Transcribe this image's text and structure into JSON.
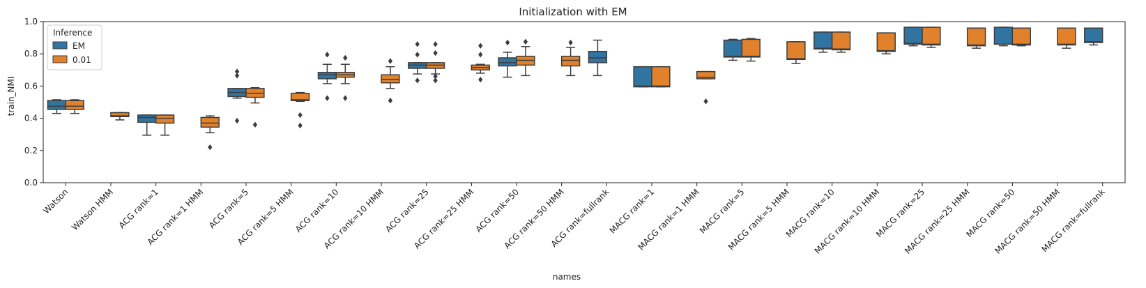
{
  "chart_data": {
    "type": "box",
    "title": "Initialization with EM",
    "xlabel": "names",
    "ylabel": "train_NMI",
    "ylim": [
      0,
      1
    ],
    "yticks": [
      "0.0",
      "0.2",
      "0.4",
      "0.6",
      "0.8",
      "1.0"
    ],
    "legend": {
      "title": "Inference",
      "placement": "top-left"
    },
    "categories": [
      "Watson",
      "Watson HMM",
      "ACG rank=1",
      "ACG rank=1 HMM",
      "ACG rank=5",
      "ACG rank=5 HMM",
      "ACG rank=10",
      "ACG rank=10 HMM",
      "ACG rank=25",
      "ACG rank=25 HMM",
      "ACG rank=50",
      "ACG rank=50 HMM",
      "ACG rank=fullrank",
      "MACG rank=1",
      "MACG rank=1 HMM",
      "MACG rank=5",
      "MACG rank=5 HMM",
      "MACG rank=10",
      "MACG rank=10 HMM",
      "MACG rank=25",
      "MACG rank=25 HMM",
      "MACG rank=50",
      "MACG rank=50 HMM",
      "MACG rank=fullrank"
    ],
    "series": [
      {
        "name": "EM",
        "color": "#3274a1",
        "boxes": [
          {
            "cat": 0,
            "q1": 0.455,
            "median": 0.475,
            "q3": 0.51,
            "wlo": 0.43,
            "whi": 0.515,
            "outliers": []
          },
          {
            "cat": 2,
            "q1": 0.375,
            "median": 0.405,
            "q3": 0.42,
            "wlo": 0.295,
            "whi": 0.42,
            "outliers": []
          },
          {
            "cat": 4,
            "q1": 0.535,
            "median": 0.56,
            "q3": 0.585,
            "wlo": 0.525,
            "whi": 0.585,
            "outliers": [
              0.385,
              0.665,
              0.69
            ]
          },
          {
            "cat": 6,
            "q1": 0.645,
            "median": 0.67,
            "q3": 0.685,
            "wlo": 0.615,
            "whi": 0.735,
            "outliers": [
              0.525,
              0.795
            ]
          },
          {
            "cat": 8,
            "q1": 0.71,
            "median": 0.73,
            "q3": 0.745,
            "wlo": 0.675,
            "whi": 0.745,
            "outliers": [
              0.635,
              0.795,
              0.86
            ]
          },
          {
            "cat": 10,
            "q1": 0.725,
            "median": 0.745,
            "q3": 0.775,
            "wlo": 0.655,
            "whi": 0.81,
            "outliers": [
              0.87
            ]
          },
          {
            "cat": 12,
            "q1": 0.745,
            "median": 0.775,
            "q3": 0.815,
            "wlo": 0.665,
            "whi": 0.885,
            "outliers": []
          },
          {
            "cat": 13,
            "q1": 0.595,
            "median": 0.6,
            "q3": 0.72,
            "wlo": 0.595,
            "whi": 0.72,
            "outliers": []
          },
          {
            "cat": 15,
            "q1": 0.78,
            "median": 0.785,
            "q3": 0.885,
            "wlo": 0.76,
            "whi": 0.89,
            "outliers": []
          },
          {
            "cat": 17,
            "q1": 0.83,
            "median": 0.835,
            "q3": 0.935,
            "wlo": 0.81,
            "whi": 0.935,
            "outliers": []
          },
          {
            "cat": 19,
            "q1": 0.86,
            "median": 0.865,
            "q3": 0.965,
            "wlo": 0.85,
            "whi": 0.965,
            "outliers": []
          },
          {
            "cat": 21,
            "q1": 0.86,
            "median": 0.86,
            "q3": 0.965,
            "wlo": 0.85,
            "whi": 0.965,
            "outliers": []
          },
          {
            "cat": 23,
            "q1": 0.87,
            "median": 0.875,
            "q3": 0.96,
            "wlo": 0.855,
            "whi": 0.96,
            "outliers": []
          }
        ]
      },
      {
        "name": "0.01",
        "color": "#e1812c",
        "boxes": [
          {
            "cat": 0,
            "q1": 0.455,
            "median": 0.475,
            "q3": 0.51,
            "wlo": 0.43,
            "whi": 0.515,
            "outliers": []
          },
          {
            "cat": 1,
            "q1": 0.41,
            "median": 0.415,
            "q3": 0.435,
            "wlo": 0.39,
            "whi": 0.435,
            "outliers": []
          },
          {
            "cat": 2,
            "q1": 0.37,
            "median": 0.4,
            "q3": 0.42,
            "wlo": 0.295,
            "whi": 0.42,
            "outliers": []
          },
          {
            "cat": 3,
            "q1": 0.345,
            "median": 0.37,
            "q3": 0.405,
            "wlo": 0.31,
            "whi": 0.415,
            "outliers": [
              0.22
            ]
          },
          {
            "cat": 4,
            "q1": 0.53,
            "median": 0.555,
            "q3": 0.585,
            "wlo": 0.495,
            "whi": 0.59,
            "outliers": [
              0.36
            ]
          },
          {
            "cat": 5,
            "q1": 0.51,
            "median": 0.515,
            "q3": 0.555,
            "wlo": 0.505,
            "whi": 0.56,
            "outliers": [
              0.355,
              0.42
            ]
          },
          {
            "cat": 6,
            "q1": 0.655,
            "median": 0.67,
            "q3": 0.685,
            "wlo": 0.615,
            "whi": 0.735,
            "outliers": [
              0.525,
              0.775
            ]
          },
          {
            "cat": 7,
            "q1": 0.62,
            "median": 0.64,
            "q3": 0.67,
            "wlo": 0.585,
            "whi": 0.72,
            "outliers": [
              0.51,
              0.755
            ]
          },
          {
            "cat": 8,
            "q1": 0.71,
            "median": 0.73,
            "q3": 0.745,
            "wlo": 0.675,
            "whi": 0.745,
            "outliers": [
              0.635,
              0.66,
              0.805,
              0.86
            ]
          },
          {
            "cat": 9,
            "q1": 0.7,
            "median": 0.715,
            "q3": 0.73,
            "wlo": 0.68,
            "whi": 0.735,
            "outliers": [
              0.64,
              0.795,
              0.85
            ]
          },
          {
            "cat": 10,
            "q1": 0.73,
            "median": 0.76,
            "q3": 0.785,
            "wlo": 0.665,
            "whi": 0.845,
            "outliers": [
              0.875
            ]
          },
          {
            "cat": 11,
            "q1": 0.725,
            "median": 0.76,
            "q3": 0.785,
            "wlo": 0.665,
            "whi": 0.84,
            "outliers": [
              0.87
            ]
          },
          {
            "cat": 13,
            "q1": 0.595,
            "median": 0.6,
            "q3": 0.72,
            "wlo": 0.595,
            "whi": 0.72,
            "outliers": []
          },
          {
            "cat": 14,
            "q1": 0.645,
            "median": 0.655,
            "q3": 0.69,
            "wlo": 0.645,
            "whi": 0.69,
            "outliers": [
              0.505
            ]
          },
          {
            "cat": 15,
            "q1": 0.78,
            "median": 0.785,
            "q3": 0.89,
            "wlo": 0.755,
            "whi": 0.895,
            "outliers": []
          },
          {
            "cat": 16,
            "q1": 0.765,
            "median": 0.77,
            "q3": 0.875,
            "wlo": 0.74,
            "whi": 0.875,
            "outliers": []
          },
          {
            "cat": 17,
            "q1": 0.825,
            "median": 0.83,
            "q3": 0.935,
            "wlo": 0.81,
            "whi": 0.935,
            "outliers": []
          },
          {
            "cat": 18,
            "q1": 0.815,
            "median": 0.82,
            "q3": 0.93,
            "wlo": 0.8,
            "whi": 0.93,
            "outliers": []
          },
          {
            "cat": 19,
            "q1": 0.855,
            "median": 0.86,
            "q3": 0.965,
            "wlo": 0.84,
            "whi": 0.965,
            "outliers": []
          },
          {
            "cat": 20,
            "q1": 0.85,
            "median": 0.855,
            "q3": 0.96,
            "wlo": 0.835,
            "whi": 0.96,
            "outliers": []
          },
          {
            "cat": 21,
            "q1": 0.855,
            "median": 0.86,
            "q3": 0.96,
            "wlo": 0.85,
            "whi": 0.96,
            "outliers": []
          },
          {
            "cat": 22,
            "q1": 0.855,
            "median": 0.86,
            "q3": 0.96,
            "wlo": 0.835,
            "whi": 0.96,
            "outliers": []
          }
        ]
      }
    ]
  }
}
